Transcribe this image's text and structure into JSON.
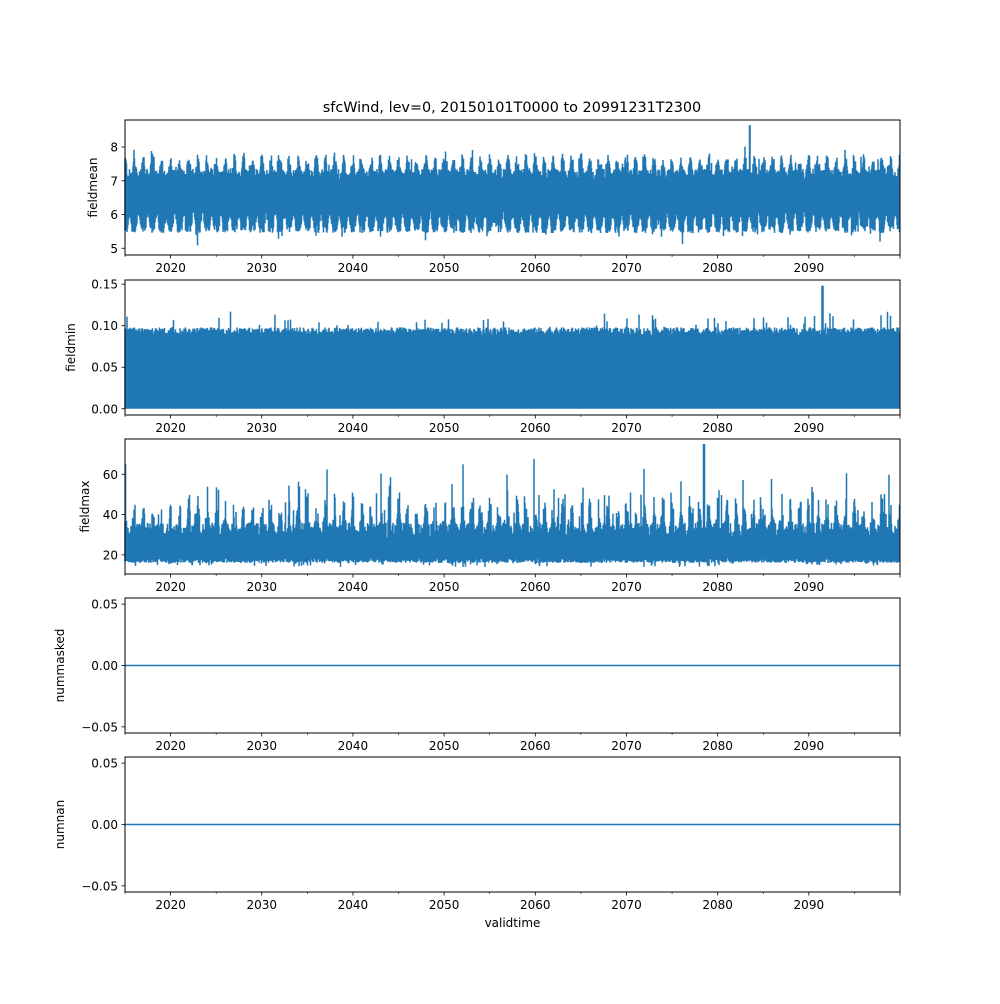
{
  "chart_data": [
    {
      "type": "line",
      "title": "sfcWind, lev=0, 20150101T0000 to 20991231T2300",
      "xlabel": "",
      "ylabel": "fieldmean",
      "xlim": [
        2015,
        2100
      ],
      "xticks": [
        2020,
        2030,
        2040,
        2050,
        2060,
        2070,
        2080,
        2090
      ],
      "ylim": [
        4.8,
        8.8
      ],
      "yticks": [
        5,
        6,
        7,
        8
      ],
      "typical_low": 5.7,
      "typical_high": 7.6,
      "min": 5.05,
      "max": 8.65,
      "max_at": 2083.5,
      "color": "#1f77b4"
    },
    {
      "type": "line",
      "xlabel": "",
      "ylabel": "fieldmin",
      "xlim": [
        2015,
        2100
      ],
      "xticks": [
        2020,
        2030,
        2040,
        2050,
        2060,
        2070,
        2080,
        2090
      ],
      "ylim": [
        -0.0075,
        0.155
      ],
      "yticks": [
        0.0,
        0.05,
        0.1,
        0.15
      ],
      "ytick_labels": [
        "0.00",
        "0.05",
        "0.10",
        "0.15"
      ],
      "typical_low": 0.0,
      "typical_high": 0.1,
      "min": 0.0,
      "max": 0.148,
      "max_at": 2091.5,
      "color": "#1f77b4"
    },
    {
      "type": "line",
      "xlabel": "",
      "ylabel": "fieldmax",
      "xlim": [
        2015,
        2100
      ],
      "xticks": [
        2020,
        2030,
        2040,
        2050,
        2060,
        2070,
        2080,
        2090
      ],
      "ylim": [
        10.5,
        77.5
      ],
      "yticks": [
        20,
        40,
        60
      ],
      "typical_low": 17,
      "typical_high": 40,
      "min": 14,
      "max": 75,
      "max_at": 2078.5,
      "color": "#1f77b4"
    },
    {
      "type": "line",
      "xlabel": "",
      "ylabel": "nummasked",
      "xlim": [
        2015,
        2100
      ],
      "xticks": [
        2020,
        2030,
        2040,
        2050,
        2060,
        2070,
        2080,
        2090
      ],
      "ylim": [
        -0.055,
        0.055
      ],
      "yticks": [
        -0.05,
        0.0,
        0.05
      ],
      "ytick_labels": [
        "−0.05",
        "0.00",
        "0.05"
      ],
      "constant": 0,
      "color": "#1f77b4"
    },
    {
      "type": "line",
      "xlabel": "validtime",
      "ylabel": "numnan",
      "xlim": [
        2015,
        2100
      ],
      "xticks": [
        2020,
        2030,
        2040,
        2050,
        2060,
        2070,
        2080,
        2090
      ],
      "ylim": [
        -0.055,
        0.055
      ],
      "yticks": [
        -0.05,
        0.0,
        0.05
      ],
      "ytick_labels": [
        "−0.05",
        "0.00",
        "0.05"
      ],
      "constant": 0,
      "color": "#1f77b4"
    }
  ]
}
